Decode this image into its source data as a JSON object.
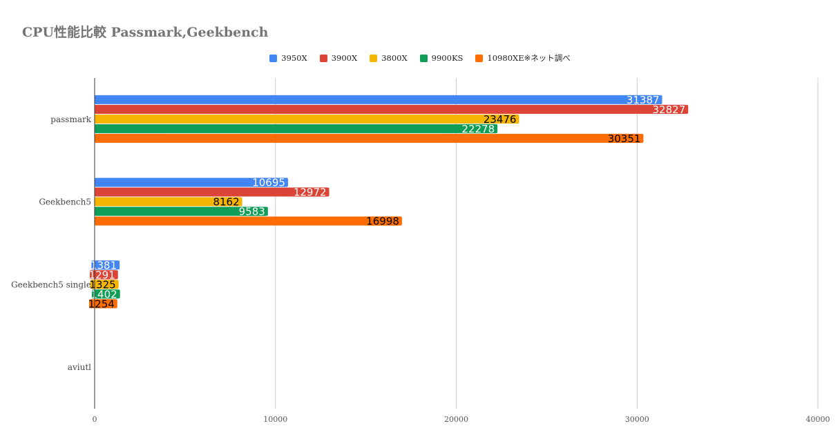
{
  "chart_data": {
    "type": "bar",
    "orientation": "horizontal",
    "title": "CPU性能比較 Passmark,Geekbench",
    "categories": [
      "passmark",
      "Geekbench5",
      "Geekbench5 single",
      "aviutl"
    ],
    "series": [
      {
        "name": "3950X",
        "color": "#4285f4",
        "values": [
          31387,
          10695,
          1381,
          null
        ],
        "labels": [
          "31387",
          "10695",
          "1381",
          ""
        ]
      },
      {
        "name": "3900X",
        "color": "#db4437",
        "values": [
          32827,
          12972,
          1291,
          null
        ],
        "labels": [
          "32827",
          "12972",
          "1291",
          ""
        ]
      },
      {
        "name": "3800X",
        "color": "#f4b400",
        "values": [
          23476,
          8162,
          1325,
          null
        ],
        "labels": [
          "23476",
          "8162",
          "1325",
          ""
        ]
      },
      {
        "name": "9900KS",
        "color": "#0f9d58",
        "values": [
          22278,
          9583,
          1402,
          null
        ],
        "labels": [
          "22278",
          "9583",
          "1402",
          ""
        ]
      },
      {
        "name": "10980XE※ネット調べ",
        "color": "#ff6d01",
        "values": [
          30351,
          16998,
          1254,
          null
        ],
        "labels": [
          "30351",
          "16998",
          "1254",
          ""
        ]
      }
    ],
    "xlim": [
      0,
      40000
    ],
    "xticks": [
      0,
      10000,
      20000,
      30000,
      40000
    ],
    "xtick_labels": [
      "0",
      "10000",
      "20000",
      "30000",
      "40000"
    ],
    "grid": true,
    "legend_position": "top-center",
    "label_colors": {
      "3950X": "#ffffff",
      "3900X": "#ffffff",
      "3800X": "#000000",
      "9900KS": "#ffffff",
      "10980XE※ネット調べ": "#000000"
    }
  }
}
